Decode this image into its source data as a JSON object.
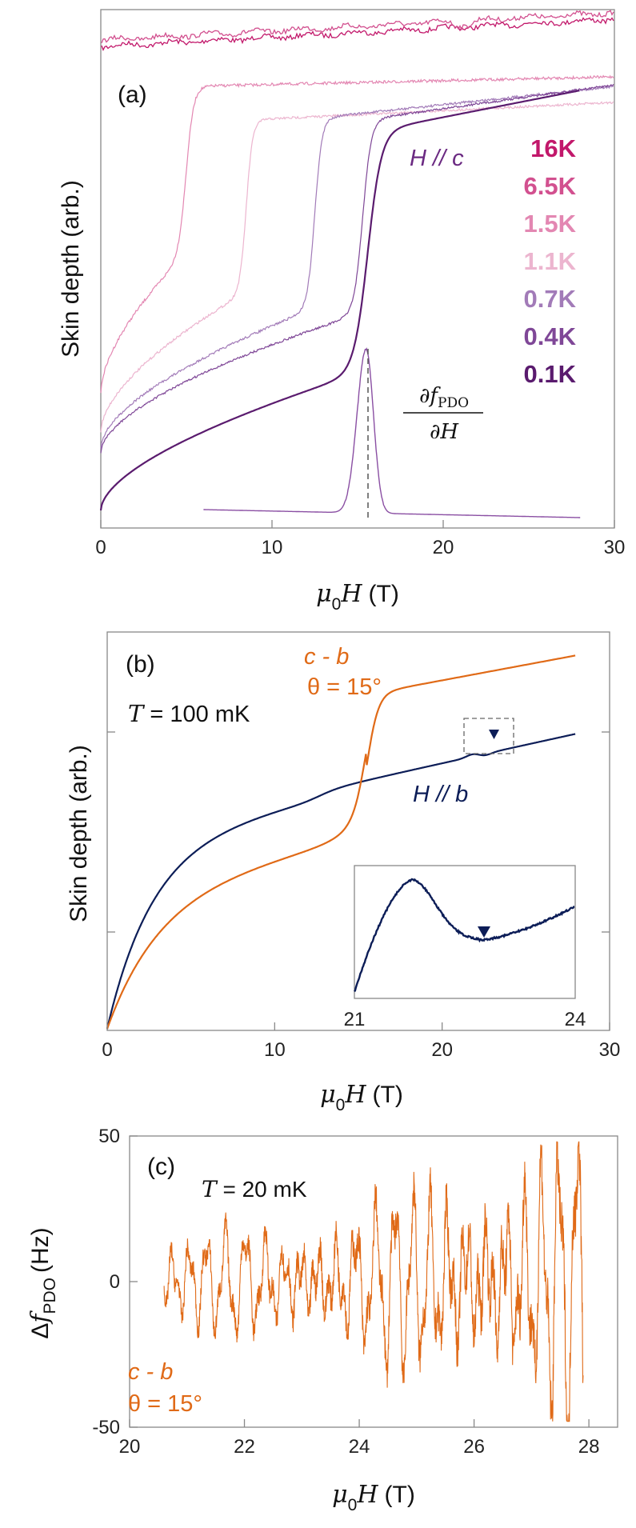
{
  "chart_data": [
    {
      "id": "a",
      "type": "line",
      "panel_label": "(a)",
      "xlabel_base": "μ",
      "xlabel_sub": "0",
      "xlabel_var": "H",
      "xlabel_unit": "(T)",
      "ylabel": "Skin depth (arb.)",
      "xlim": [
        0,
        30
      ],
      "xticks": [
        "0",
        "10",
        "20",
        "30"
      ],
      "y_ticks_labeled": false,
      "annotation_field": "H // c",
      "derivative_label": "∂f_PDO / ∂H",
      "derivative_num": "∂f",
      "derivative_sub": "PDO",
      "derivative_den": "∂H",
      "derivative_peak_field": 15.5,
      "series": [
        {
          "name": "16K",
          "color": "#c2186b",
          "onset": null
        },
        {
          "name": "6.5K",
          "color": "#d2508f",
          "onset": null
        },
        {
          "name": "1.5K",
          "color": "#e387b2",
          "onset": 5.0
        },
        {
          "name": "1.1K",
          "color": "#ecb5cf",
          "onset": 8.5
        },
        {
          "name": "0.7K",
          "color": "#a27bb8",
          "onset": 12.5
        },
        {
          "name": "0.4K",
          "color": "#7f4797",
          "onset": 15.3
        },
        {
          "name": "0.1K",
          "color": "#5a1b6e",
          "onset": 15.6
        }
      ]
    },
    {
      "id": "b",
      "type": "line",
      "panel_label": "(b)",
      "xlabel_base": "μ",
      "xlabel_sub": "0",
      "xlabel_var": "H",
      "xlabel_unit": "(T)",
      "ylabel": "Skin depth (arb.)",
      "xlim": [
        0,
        30
      ],
      "xticks": [
        "0",
        "10",
        "20",
        "30"
      ],
      "temperature_var": "T",
      "temperature_value": "= 100 mK",
      "series": [
        {
          "name": "H // b",
          "color": "#0c1d57",
          "transition": null,
          "kink": 22.4
        },
        {
          "name": "c - b, θ = 15°",
          "color": "#e06a17",
          "transition": 15.5
        }
      ],
      "orange_label_1": "c - b",
      "orange_label_2": "θ = 15°",
      "blue_label": "H // b",
      "inset": {
        "xlim": [
          21,
          24
        ],
        "xticks": [
          "21",
          "24"
        ],
        "peak_field": 21.8,
        "min_field": 22.7
      }
    },
    {
      "id": "c",
      "type": "line",
      "panel_label": "(c)",
      "xlabel_base": "μ",
      "xlabel_sub": "0",
      "xlabel_var": "H",
      "xlabel_unit": "(T)",
      "ylabel_prefix": "Δ",
      "ylabel_var": "f",
      "ylabel_sub": "PDO",
      "ylabel_unit": "(Hz)",
      "xlim": [
        20,
        28.5
      ],
      "ylim": [
        -50,
        50
      ],
      "xticks": [
        "20",
        "22",
        "24",
        "26",
        "28"
      ],
      "yticks": [
        "50",
        "0",
        "-50"
      ],
      "temperature_var": "T",
      "temperature_value": "= 20 mK",
      "orange_label_1": "c - b",
      "orange_label_2": "θ = 15°",
      "series": [
        {
          "name": "c - b θ = 15°",
          "color": "#e06a17",
          "x_range": [
            20.6,
            27.9
          ],
          "amplitude_start": 14,
          "amplitude_end": 45
        }
      ]
    }
  ]
}
